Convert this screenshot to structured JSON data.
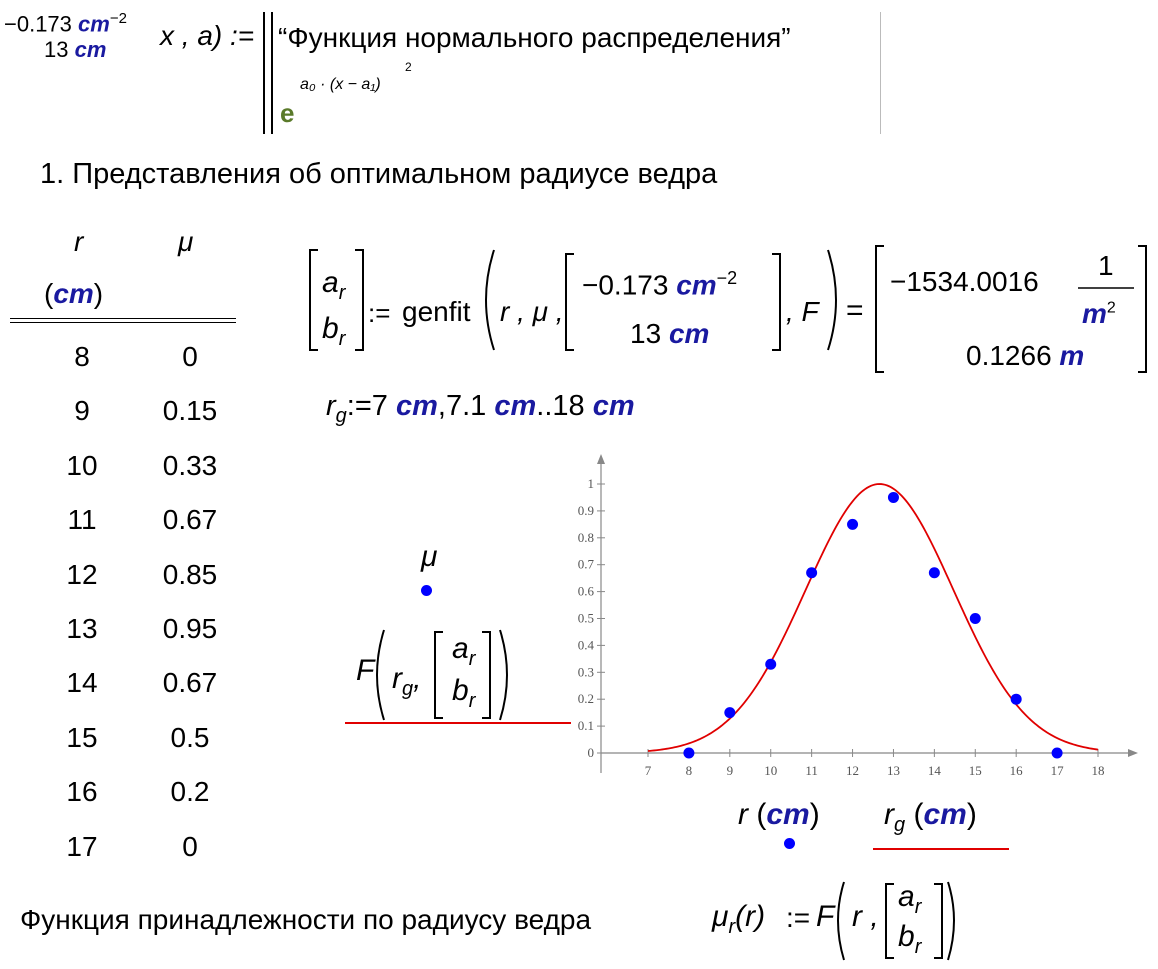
{
  "header_def": {
    "guess_top": "−0.173",
    "guess_top_unit": "cm",
    "guess_top_exp": "−2",
    "guess_bottom": "13",
    "guess_bottom_unit": "cm",
    "func_args": "x , a) :=",
    "comment": "“Функция нормального распределения”",
    "exp_base": "e",
    "exp_power": "a₀ · (x − a₁)",
    "exp_square": "2"
  },
  "section_title": "1. Представления об оптимальном радиусе ведра",
  "table": {
    "col1_header": "r",
    "col1_unit": "cm",
    "col2_header": "μ",
    "r_values": [
      "8",
      "9",
      "10",
      "11",
      "12",
      "13",
      "14",
      "15",
      "16",
      "17"
    ],
    "mu_values": [
      "0",
      "0.15",
      "0.33",
      "0.67",
      "0.85",
      "0.95",
      "0.67",
      "0.5",
      "0.2",
      "0"
    ]
  },
  "genfit": {
    "lhs_top": "a",
    "lhs_top_sub": "r",
    "lhs_bottom": "b",
    "lhs_bottom_sub": "r",
    "assign": ":=",
    "func_name": "genfit",
    "args_prefix": "r , μ ,",
    "guess_top": "−0.173",
    "guess_top_unit": "cm",
    "guess_top_exp": "−2",
    "guess_bottom": "13",
    "guess_bottom_unit": "cm",
    "args_suffix": ", F",
    "equals": "=",
    "result_top": "−1534.0016",
    "result_frac_num": "1",
    "result_frac_den": "m",
    "result_frac_exp": "2",
    "result_bottom": "0.1266",
    "result_bottom_unit": "m"
  },
  "range_def": {
    "var": "r",
    "sub": "g",
    "assign": ":=",
    "start": "7",
    "start_unit": "cm",
    "step": "7.1",
    "step_unit": "cm",
    "dots": "..",
    "end": "18",
    "end_unit": "cm"
  },
  "plot_legend": {
    "y1_label": "μ",
    "y2_func": "F",
    "y2_arg": "r",
    "y2_arg_sub": "g",
    "y2_vec_top": "a",
    "y2_vec_top_sub": "r",
    "y2_vec_bottom": "b",
    "y2_vec_bottom_sub": "r",
    "x1_label": "r",
    "x1_unit": "cm",
    "x2_label": "r",
    "x2_sub": "g",
    "x2_unit": "cm"
  },
  "chart_data": {
    "type": "scatter",
    "xlim": [
      7,
      18
    ],
    "ylim": [
      0,
      1
    ],
    "x_ticks": [
      "7",
      "8",
      "9",
      "10",
      "11",
      "12",
      "13",
      "14",
      "15",
      "16",
      "17",
      "18"
    ],
    "y_ticks": [
      "0",
      "0.1",
      "0.2",
      "0.3",
      "0.4",
      "0.5",
      "0.6",
      "0.7",
      "0.8",
      "0.9",
      "1"
    ],
    "points": {
      "x": [
        8,
        9,
        10,
        11,
        12,
        13,
        14,
        15,
        16,
        17
      ],
      "y": [
        0,
        0.15,
        0.33,
        0.67,
        0.85,
        0.95,
        0.67,
        0.5,
        0.2,
        0
      ]
    },
    "curve": {
      "a": -0.1534,
      "b": 12.66,
      "from": 7,
      "to": 18
    },
    "colors": {
      "points": "#0000ff",
      "curve": "#e00000",
      "axis": "#888888"
    }
  },
  "membership": {
    "text": "Функция принадлежности по радиусу ведра",
    "lhs": "μ",
    "lhs_sub": "r",
    "lhs_arg": "(r)",
    "assign": ":=",
    "func": "F",
    "arg": "r ,",
    "vec_top": "a",
    "vec_top_sub": "r",
    "vec_bottom": "b",
    "vec_bottom_sub": "r"
  }
}
